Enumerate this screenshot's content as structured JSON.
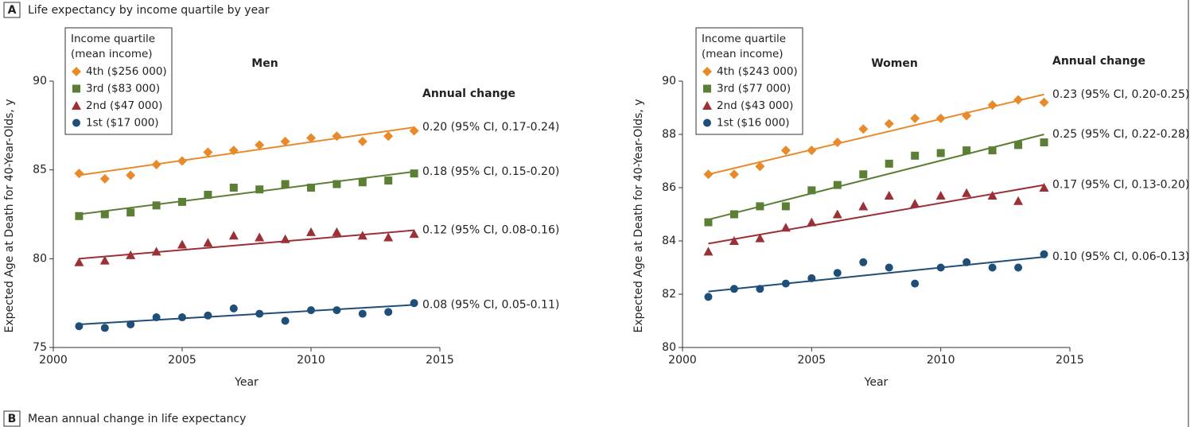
{
  "panel_a": {
    "label": "A",
    "title": "Life expectancy by income quartile by year"
  },
  "panel_b": {
    "label": "B",
    "title": "Mean annual change in life expectancy"
  },
  "chart_data": [
    {
      "type": "scatter",
      "subtitle": "Men",
      "x_label": "Year",
      "y_label": "Expected Age at Death for 40-Year-Olds, y",
      "legend_title": [
        "Income quartile",
        "(mean income)"
      ],
      "annotation_title": "Annual change",
      "x": [
        2001,
        2002,
        2003,
        2004,
        2005,
        2006,
        2007,
        2008,
        2009,
        2010,
        2011,
        2012,
        2013,
        2014
      ],
      "trend_x": [
        2001,
        2014
      ],
      "xlim": [
        2000,
        2015
      ],
      "xticks": [
        2000,
        2005,
        2010,
        2015
      ],
      "ylim": [
        75,
        90
      ],
      "yticks": [
        75,
        80,
        85,
        90
      ],
      "series": [
        {
          "name": "4th ($256 000)",
          "color": "#e8892a",
          "marker": "diamond",
          "values": [
            84.8,
            84.5,
            84.7,
            85.3,
            85.5,
            86.0,
            86.1,
            86.4,
            86.6,
            86.8,
            86.9,
            86.6,
            86.9,
            87.2
          ],
          "trend": [
            84.7,
            87.4
          ],
          "annotation": "0.20 (95% CI, 0.17-0.24)"
        },
        {
          "name": "3rd ($83 000)",
          "color": "#5b7f35",
          "marker": "square",
          "values": [
            82.4,
            82.5,
            82.6,
            83.0,
            83.2,
            83.6,
            84.0,
            83.9,
            84.2,
            84.0,
            84.2,
            84.3,
            84.4,
            84.8
          ],
          "trend": [
            82.5,
            84.9
          ],
          "annotation": "0.18 (95% CI, 0.15-0.20)"
        },
        {
          "name": "2nd ($47 000)",
          "color": "#9b3037",
          "marker": "triangle",
          "values": [
            79.8,
            79.9,
            80.2,
            80.4,
            80.8,
            80.9,
            81.3,
            81.2,
            81.1,
            81.5,
            81.5,
            81.3,
            81.2,
            81.4
          ],
          "trend": [
            80.0,
            81.6
          ],
          "annotation": "0.12 (95% CI, 0.08-0.16)"
        },
        {
          "name": "1st ($17 000)",
          "color": "#1f4e79",
          "marker": "circle",
          "values": [
            76.2,
            76.1,
            76.3,
            76.7,
            76.7,
            76.8,
            77.2,
            76.9,
            76.5,
            77.1,
            77.1,
            76.9,
            77.0,
            77.5
          ],
          "trend": [
            76.3,
            77.4
          ],
          "annotation": "0.08 (95% CI, 0.05-0.11)"
        }
      ]
    },
    {
      "type": "scatter",
      "subtitle": "Women",
      "x_label": "Year",
      "y_label": "Expected Age at Death for 40-Year-Olds, y",
      "legend_title": [
        "Income quartile",
        "(mean income)"
      ],
      "annotation_title": "Annual change",
      "x": [
        2001,
        2002,
        2003,
        2004,
        2005,
        2006,
        2007,
        2008,
        2009,
        2010,
        2011,
        2012,
        2013,
        2014
      ],
      "trend_x": [
        2001,
        2014
      ],
      "xlim": [
        2000,
        2015
      ],
      "xticks": [
        2000,
        2005,
        2010,
        2015
      ],
      "ylim": [
        80,
        90
      ],
      "yticks": [
        80,
        82,
        84,
        86,
        88,
        90
      ],
      "series": [
        {
          "name": "4th ($243 000)",
          "color": "#e8892a",
          "marker": "diamond",
          "values": [
            86.5,
            86.5,
            86.8,
            87.4,
            87.4,
            87.7,
            88.2,
            88.4,
            88.6,
            88.6,
            88.7,
            89.1,
            89.3,
            89.2
          ],
          "trend": [
            86.5,
            89.5
          ],
          "annotation": "0.23 (95% CI, 0.20-0.25)"
        },
        {
          "name": "3rd ($77 000)",
          "color": "#5b7f35",
          "marker": "square",
          "values": [
            84.7,
            85.0,
            85.3,
            85.3,
            85.9,
            86.1,
            86.5,
            86.9,
            87.2,
            87.3,
            87.4,
            87.4,
            87.6,
            87.7
          ],
          "trend": [
            84.8,
            88.0
          ],
          "annotation": "0.25 (95% CI, 0.22-0.28)"
        },
        {
          "name": "2nd ($43 000)",
          "color": "#9b3037",
          "marker": "triangle",
          "values": [
            83.6,
            84.0,
            84.1,
            84.5,
            84.7,
            85.0,
            85.3,
            85.7,
            85.4,
            85.7,
            85.8,
            85.7,
            85.5,
            86.0
          ],
          "trend": [
            83.9,
            86.1
          ],
          "annotation": "0.17 (95% CI, 0.13-0.20)"
        },
        {
          "name": "1st ($16 000)",
          "color": "#1f4e79",
          "marker": "circle",
          "values": [
            81.9,
            82.2,
            82.2,
            82.4,
            82.6,
            82.8,
            83.2,
            83.0,
            82.4,
            83.0,
            83.2,
            83.0,
            83.0,
            83.5
          ],
          "trend": [
            82.1,
            83.4
          ],
          "annotation": "0.10 (95% CI, 0.06-0.13)"
        }
      ]
    }
  ]
}
